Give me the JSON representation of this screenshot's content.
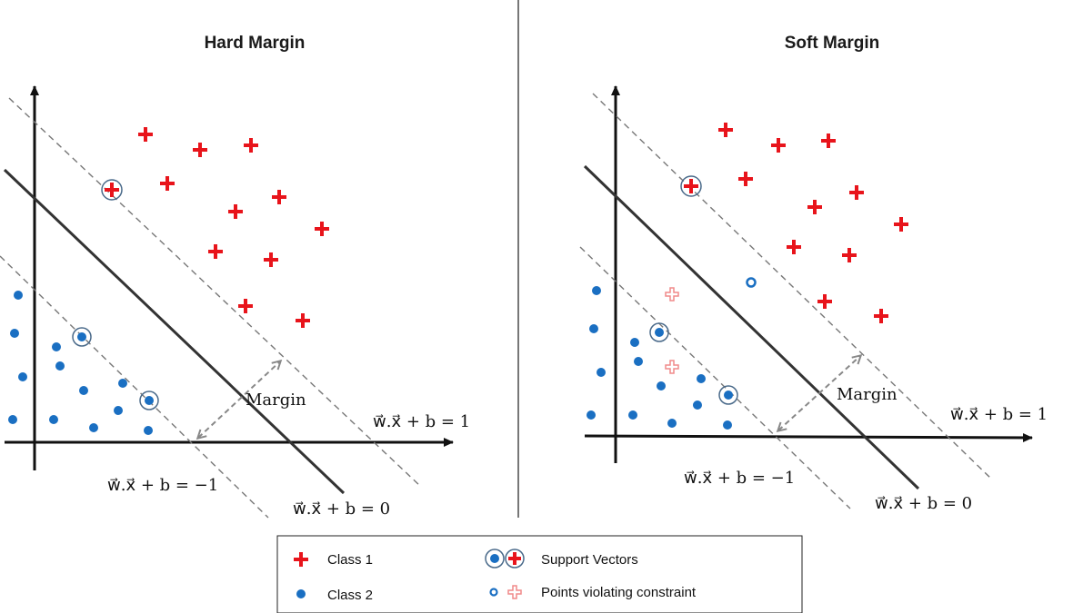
{
  "panels": [
    {
      "title": "Hard Margin",
      "margin_label": "Margin",
      "eq_positive": "w⃗.x⃗ + b = 1",
      "eq_negative": "w⃗.x⃗ + b = −1",
      "eq_zero": "w⃗.x⃗ + b = 0"
    },
    {
      "title": "Soft Margin",
      "margin_label": "Margin",
      "eq_positive": "w⃗.x⃗ + b = 1",
      "eq_negative": "w⃗.x⃗ + b = −1",
      "eq_zero": "w⃗.x⃗ + b = 0"
    }
  ],
  "legend": {
    "class1": "Class 1",
    "class2": "Class 2",
    "support_vectors": "Support Vectors",
    "violating": "Points violating constraint"
  },
  "colors": {
    "class1": "#e8141b",
    "class2": "#1a6fc2",
    "violating_plus": "#f08a8a",
    "axis": "#111111",
    "divider": "#777777"
  }
}
